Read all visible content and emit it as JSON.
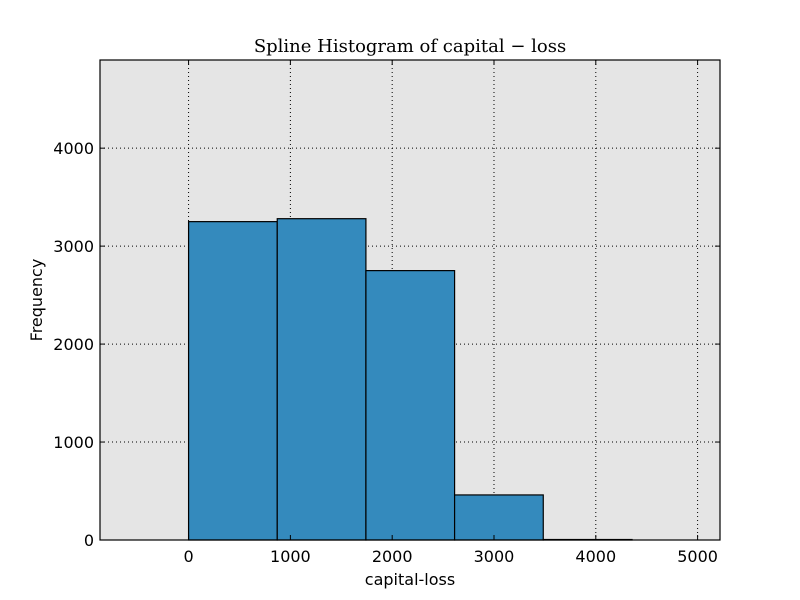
{
  "chart_data": {
    "type": "bar",
    "title": "Spline Histogram of capital − loss",
    "xlabel": "capital-loss",
    "ylabel": "Frequency",
    "xlim": [
      -870,
      5220
    ],
    "ylim": [
      0,
      4900
    ],
    "xticks": [
      0,
      1000,
      2000,
      3000,
      4000,
      5000
    ],
    "xtick_labels": [
      "0",
      "1000",
      "2000",
      "3000",
      "4000",
      "5000"
    ],
    "yticks": [
      0,
      1000,
      2000,
      3000,
      4000
    ],
    "ytick_labels": [
      "0",
      "1000",
      "2000",
      "3000",
      "4000"
    ],
    "grid": true,
    "bins": [
      {
        "x0": 0,
        "x1": 871,
        "value": 3250
      },
      {
        "x0": 871,
        "x1": 1742,
        "value": 3280
      },
      {
        "x0": 1742,
        "x1": 2613,
        "value": 2750
      },
      {
        "x0": 2613,
        "x1": 3484,
        "value": 460
      },
      {
        "x0": 3484,
        "x1": 4356,
        "value": 5
      }
    ],
    "colors": {
      "bar": "#348ABD",
      "plot_background": "#E5E5E5",
      "edge": "#000000"
    }
  }
}
